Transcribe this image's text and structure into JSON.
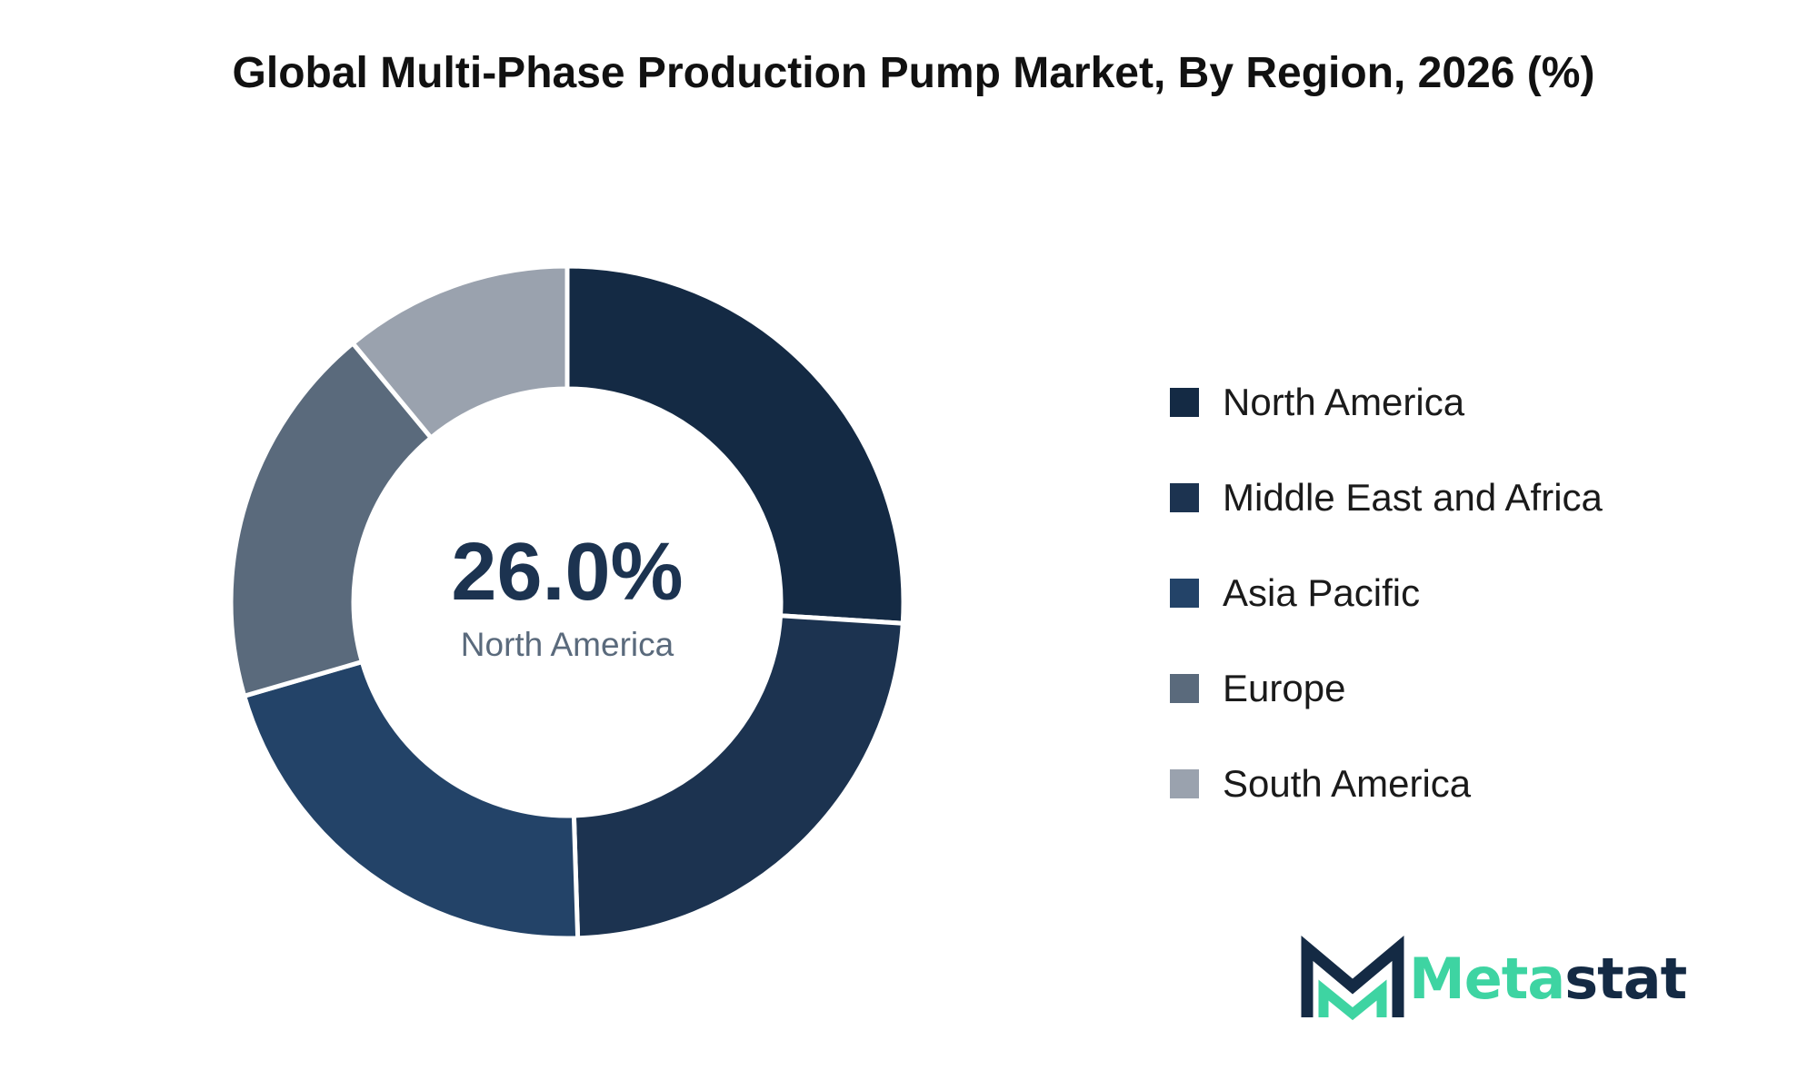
{
  "chart_data": {
    "type": "pie",
    "title": "Global Multi-Phase Production Pump Market, By Region, 2026 (%)",
    "categories": [
      "North America",
      "Middle East and Africa",
      "Asia Pacific",
      "Europe",
      "South America"
    ],
    "values": [
      26.0,
      23.5,
      21.0,
      18.5,
      11.0
    ],
    "colors": [
      "#142a44",
      "#1c3350",
      "#234368",
      "#5a6a7c",
      "#9aa2ae"
    ],
    "donut": true,
    "highlight": {
      "value_text": "26.0%",
      "label": "North America",
      "value_color": "#1c3350",
      "label_color": "#5a6a7c"
    },
    "legend_position": "right"
  },
  "logo": {
    "part1": "Meta",
    "part2": "stat",
    "color1": "#3ed4a2",
    "color2": "#142a44",
    "icon": "metastat-m-logo"
  }
}
